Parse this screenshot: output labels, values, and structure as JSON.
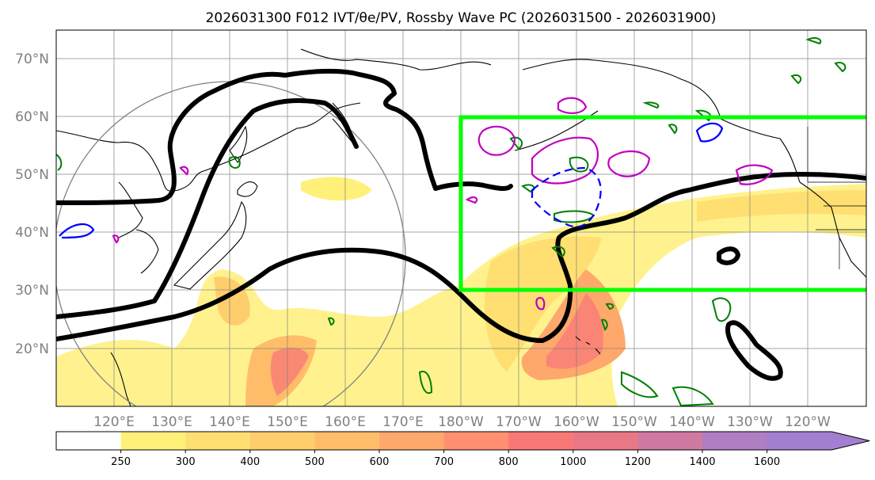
{
  "title": "2026031300 F012 IVT/θe/PV, Rossby Wave PC (2026031500 - 2026031900)",
  "lat_labels": [
    "70°N",
    "60°N",
    "50°N",
    "40°N",
    "30°N",
    "20°N"
  ],
  "lon_labels": [
    "120°E",
    "130°E",
    "140°E",
    "150°E",
    "160°E",
    "170°E",
    "180°W",
    "170°W",
    "160°W",
    "150°W",
    "140°W",
    "130°W",
    "120°W"
  ],
  "colorbar": {
    "ticks": [
      "250",
      "300",
      "400",
      "500",
      "600",
      "700",
      "800",
      "1000",
      "1200",
      "1400",
      "1600"
    ],
    "colors": [
      "#ffffff",
      "#fff07a",
      "#ffdf72",
      "#ffce6c",
      "#ffbd6a",
      "#ffa86c",
      "#ff9070",
      "#f87878",
      "#e87886",
      "#d07aa2",
      "#b07ec2",
      "#a37fd2"
    ]
  },
  "map": {
    "extent": {
      "lon": [
        110,
        250
      ],
      "lat": [
        10,
        75
      ]
    },
    "box_color": "#00ff00",
    "box": {
      "lon": [
        180,
        250
      ],
      "lat": [
        30,
        60
      ]
    }
  }
}
